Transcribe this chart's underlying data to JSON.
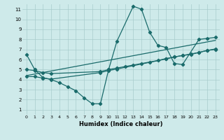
{
  "background_color": "#ceeaea",
  "grid_color": "#a8cccc",
  "line_color": "#1a6b6b",
  "xlabel": "Humidex (Indice chaleur)",
  "xlim": [
    -0.5,
    23.5
  ],
  "ylim": [
    0.5,
    11.5
  ],
  "xticks": [
    0,
    1,
    2,
    3,
    4,
    5,
    6,
    7,
    8,
    9,
    10,
    11,
    12,
    13,
    14,
    15,
    16,
    17,
    18,
    19,
    20,
    21,
    22,
    23
  ],
  "yticks": [
    1,
    2,
    3,
    4,
    5,
    6,
    7,
    8,
    9,
    10,
    11
  ],
  "curve1_x": [
    0,
    1,
    2,
    3,
    4,
    5,
    6,
    7,
    8,
    9,
    10,
    11,
    13,
    14,
    15,
    16,
    17,
    18,
    19,
    21,
    22,
    23
  ],
  "curve1_y": [
    6.5,
    5.0,
    4.2,
    4.0,
    3.7,
    3.3,
    2.9,
    2.2,
    1.6,
    1.6,
    5.0,
    7.8,
    11.3,
    11.0,
    8.7,
    7.4,
    7.2,
    5.6,
    5.5,
    8.0,
    8.1,
    8.2
  ],
  "curve2_x": [
    0,
    1,
    2,
    3,
    9,
    10,
    11,
    12,
    13,
    14,
    15,
    16,
    17,
    18,
    19,
    20,
    21,
    22,
    23
  ],
  "curve2_y": [
    5.0,
    4.9,
    4.7,
    4.6,
    4.8,
    5.0,
    5.15,
    5.3,
    5.45,
    5.6,
    5.75,
    5.9,
    6.1,
    6.25,
    6.4,
    6.55,
    6.7,
    6.9,
    7.0
  ],
  "curve3_x": [
    0,
    23
  ],
  "curve3_y": [
    4.4,
    7.9
  ],
  "curve4_x": [
    0,
    1,
    2,
    3,
    9,
    10,
    11,
    17,
    18,
    19,
    20,
    21,
    22,
    23
  ],
  "curve4_y": [
    4.3,
    4.3,
    4.15,
    4.05,
    4.7,
    4.9,
    5.05,
    6.05,
    6.25,
    6.4,
    6.5,
    6.7,
    6.9,
    7.05
  ]
}
